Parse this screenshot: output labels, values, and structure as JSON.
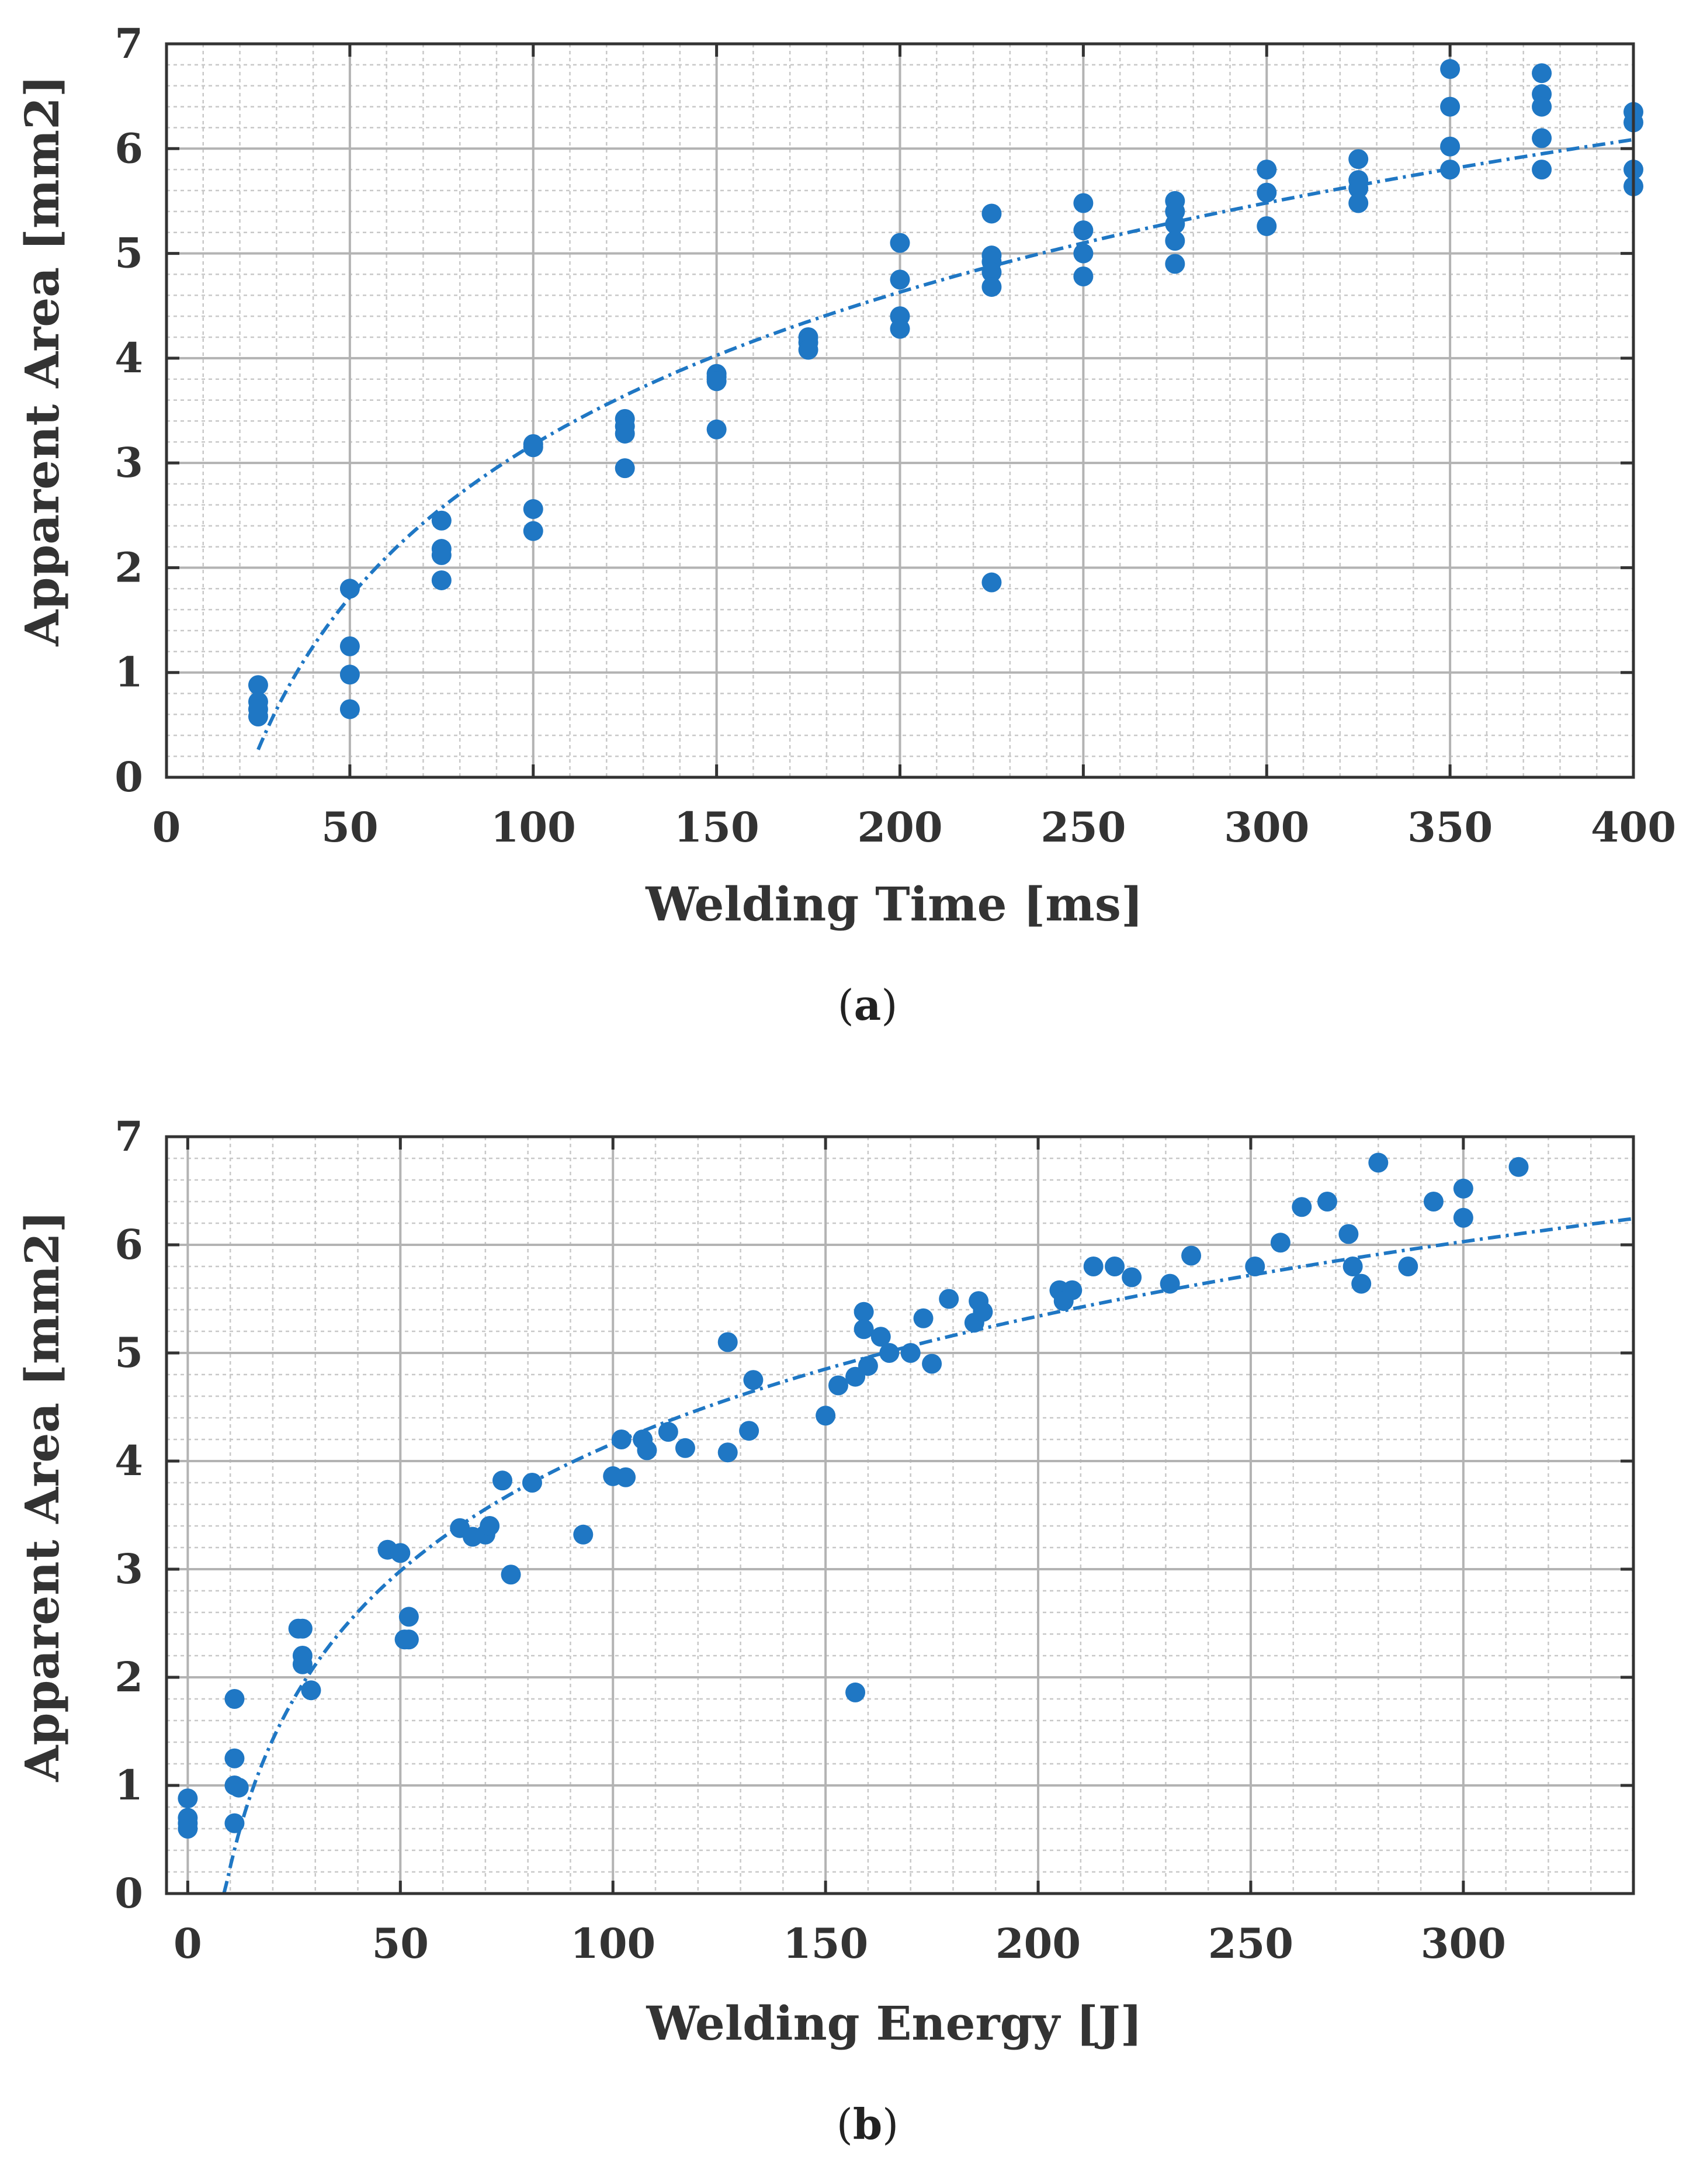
{
  "figure": {
    "panels": [
      "(a)",
      "(b)"
    ],
    "panel_letters": [
      "a",
      "b"
    ]
  },
  "colors": {
    "marker": "#1f77c4",
    "fit_line": "#1f77c4",
    "major_grid": "#b3b3b3",
    "minor_grid": "#c8c8c8",
    "axis": "#333333"
  },
  "chart_data": [
    {
      "type": "scatter",
      "panel": "a",
      "xlabel": "Welding Time [ms]",
      "ylabel": "Apparent Area [mm2]",
      "xlim": [
        0,
        400
      ],
      "ylim": [
        0,
        7
      ],
      "xticks": [
        0,
        50,
        100,
        150,
        200,
        250,
        300,
        350,
        400
      ],
      "yticks": [
        0,
        1,
        2,
        3,
        4,
        5,
        6,
        7
      ],
      "grid": "major and minor",
      "series": [
        {
          "name": "measurements",
          "style": "markers",
          "points": [
            [
              25,
              0.88
            ],
            [
              25,
              0.72
            ],
            [
              25,
              0.65
            ],
            [
              25,
              0.58
            ],
            [
              50,
              1.8
            ],
            [
              50,
              1.25
            ],
            [
              50,
              0.98
            ],
            [
              50,
              0.65
            ],
            [
              75,
              2.45
            ],
            [
              75,
              2.18
            ],
            [
              75,
              2.12
            ],
            [
              75,
              1.88
            ],
            [
              100,
              3.18
            ],
            [
              100,
              3.15
            ],
            [
              100,
              2.56
            ],
            [
              100,
              2.35
            ],
            [
              125,
              3.42
            ],
            [
              125,
              3.35
            ],
            [
              125,
              3.28
            ],
            [
              125,
              2.95
            ],
            [
              150,
              3.85
            ],
            [
              150,
              3.82
            ],
            [
              150,
              3.78
            ],
            [
              150,
              3.32
            ],
            [
              175,
              4.2
            ],
            [
              175,
              4.15
            ],
            [
              175,
              4.08
            ],
            [
              200,
              5.1
            ],
            [
              200,
              4.75
            ],
            [
              200,
              4.4
            ],
            [
              200,
              4.28
            ],
            [
              225,
              5.38
            ],
            [
              225,
              4.98
            ],
            [
              225,
              4.92
            ],
            [
              225,
              4.82
            ],
            [
              225,
              4.68
            ],
            [
              225,
              1.86
            ],
            [
              250,
              5.48
            ],
            [
              250,
              5.22
            ],
            [
              250,
              5.0
            ],
            [
              250,
              4.78
            ],
            [
              275,
              5.5
            ],
            [
              275,
              5.4
            ],
            [
              275,
              5.28
            ],
            [
              275,
              5.12
            ],
            [
              275,
              4.9
            ],
            [
              300,
              5.8
            ],
            [
              300,
              5.58
            ],
            [
              300,
              5.26
            ],
            [
              325,
              5.9
            ],
            [
              325,
              5.7
            ],
            [
              325,
              5.62
            ],
            [
              325,
              5.48
            ],
            [
              350,
              6.76
            ],
            [
              350,
              6.4
            ],
            [
              350,
              6.02
            ],
            [
              350,
              5.8
            ],
            [
              375,
              6.72
            ],
            [
              375,
              6.52
            ],
            [
              375,
              6.4
            ],
            [
              375,
              6.1
            ],
            [
              375,
              5.8
            ],
            [
              400,
              6.35
            ],
            [
              400,
              6.25
            ],
            [
              400,
              5.8
            ],
            [
              400,
              5.64
            ]
          ]
        },
        {
          "name": "logarithmic fit",
          "style": "dash-dot line",
          "function": "y = a*ln(x) + b",
          "a": 2.1,
          "b": -6.496,
          "x_range": [
            25,
            400
          ]
        }
      ]
    },
    {
      "type": "scatter",
      "panel": "b",
      "xlabel": "Welding Energy [J]",
      "ylabel": "Apparent Area [mm2]",
      "xlim": [
        -5,
        340
      ],
      "ylim": [
        0,
        7
      ],
      "xticks": [
        0,
        50,
        100,
        150,
        200,
        250,
        300
      ],
      "yticks": [
        0,
        1,
        2,
        3,
        4,
        5,
        6,
        7
      ],
      "grid": "major and minor",
      "series": [
        {
          "name": "measurements",
          "style": "markers",
          "points": [
            [
              0,
              0.88
            ],
            [
              0,
              0.7
            ],
            [
              0,
              0.65
            ],
            [
              0,
              0.6
            ],
            [
              11,
              1.8
            ],
            [
              11,
              1.25
            ],
            [
              11,
              1.0
            ],
            [
              12,
              0.98
            ],
            [
              11,
              0.65
            ],
            [
              26,
              2.45
            ],
            [
              27,
              2.45
            ],
            [
              27,
              2.2
            ],
            [
              27,
              2.12
            ],
            [
              29,
              1.88
            ],
            [
              47,
              3.18
            ],
            [
              50,
              3.15
            ],
            [
              51,
              2.35
            ],
            [
              52,
              2.35
            ],
            [
              52,
              2.56
            ],
            [
              64,
              3.38
            ],
            [
              67,
              3.3
            ],
            [
              70,
              3.32
            ],
            [
              71,
              3.4
            ],
            [
              74,
              3.82
            ],
            [
              76,
              2.95
            ],
            [
              81,
              3.8
            ],
            [
              93,
              3.32
            ],
            [
              100,
              3.86
            ],
            [
              102,
              4.2
            ],
            [
              103,
              3.85
            ],
            [
              107,
              4.2
            ],
            [
              108,
              4.1
            ],
            [
              113,
              4.27
            ],
            [
              117,
              4.12
            ],
            [
              127,
              5.1
            ],
            [
              127,
              4.08
            ],
            [
              132,
              4.28
            ],
            [
              133,
              4.75
            ],
            [
              150,
              4.42
            ],
            [
              153,
              4.7
            ],
            [
              157,
              4.78
            ],
            [
              157,
              1.86
            ],
            [
              159,
              5.38
            ],
            [
              159,
              5.22
            ],
            [
              160,
              4.88
            ],
            [
              163,
              5.15
            ],
            [
              165,
              5.0
            ],
            [
              170,
              5.0
            ],
            [
              173,
              5.32
            ],
            [
              175,
              4.9
            ],
            [
              179,
              5.5
            ],
            [
              185,
              5.28
            ],
            [
              186,
              5.48
            ],
            [
              187,
              5.38
            ],
            [
              205,
              5.58
            ],
            [
              206,
              5.48
            ],
            [
              208,
              5.58
            ],
            [
              213,
              5.8
            ],
            [
              218,
              5.8
            ],
            [
              222,
              5.7
            ],
            [
              231,
              5.64
            ],
            [
              236,
              5.9
            ],
            [
              251,
              5.8
            ],
            [
              257,
              6.02
            ],
            [
              262,
              6.35
            ],
            [
              268,
              6.4
            ],
            [
              273,
              6.1
            ],
            [
              274,
              5.8
            ],
            [
              276,
              5.64
            ],
            [
              280,
              6.76
            ],
            [
              287,
              5.8
            ],
            [
              293,
              6.4
            ],
            [
              300,
              6.52
            ],
            [
              300,
              6.25
            ],
            [
              313,
              6.72
            ]
          ]
        },
        {
          "name": "logarithmic fit",
          "style": "dash-dot line",
          "function": "y = a*ln(x) + b",
          "a": 1.7,
          "b": -3.667,
          "x_range": [
            8.5,
            340
          ]
        }
      ]
    }
  ]
}
